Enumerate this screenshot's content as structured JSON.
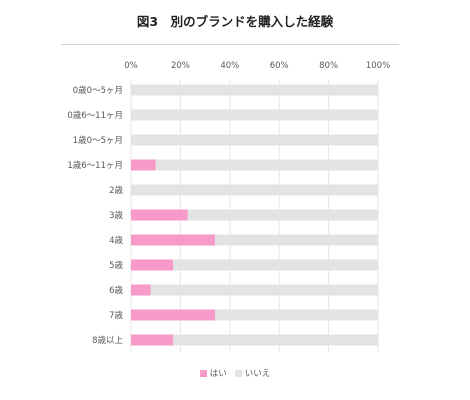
{
  "chart_data": {
    "type": "bar",
    "orientation": "horizontal",
    "stacked": true,
    "title": "図3　別のブランドを購入した経験",
    "categories": [
      "0歳0〜5ヶ月",
      "0歳6〜11ヶ月",
      "1歳0〜5ヶ月",
      "1歳6〜11ヶ月",
      "2歳",
      "3歳",
      "4歳",
      "5歳",
      "6歳",
      "7歳",
      "8歳以上"
    ],
    "series": [
      {
        "name": "はい",
        "color": "#f799c9",
        "values": [
          0,
          0,
          0,
          10,
          0,
          23,
          34,
          17,
          8,
          34,
          17
        ]
      },
      {
        "name": "いいえ",
        "color": "#e3e3e3",
        "values": [
          100,
          100,
          100,
          90,
          100,
          77,
          66,
          83,
          92,
          66,
          83
        ]
      }
    ],
    "xlim": [
      0,
      100
    ],
    "x_ticks": [
      "0%",
      "20%",
      "40%",
      "60%",
      "80%",
      "100%"
    ],
    "grid": true,
    "legend_position": "bottom"
  }
}
